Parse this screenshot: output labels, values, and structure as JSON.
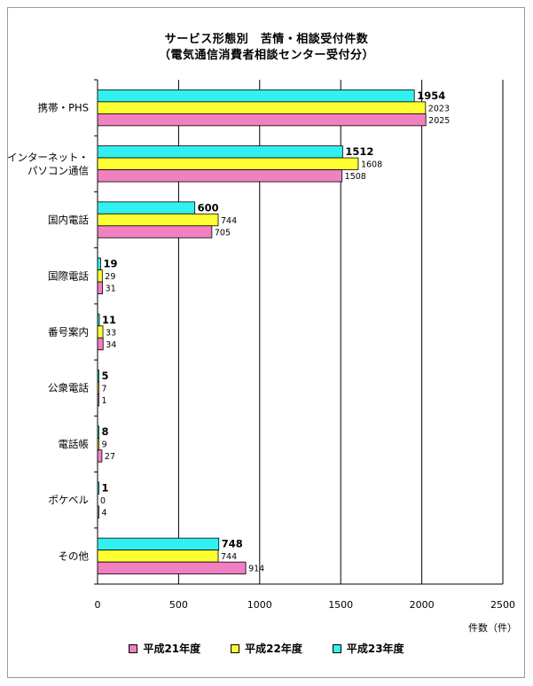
{
  "chart_data": {
    "type": "bar",
    "orientation": "horizontal",
    "title": "サービス形態別　苦情・相談受付件数",
    "subtitle": "（電気通信消費者相談センター受付分）",
    "categories": [
      "携帯・PHS",
      "インターネット・|パソコン通信",
      "国内電話",
      "国際電話",
      "番号案内",
      "公衆電話",
      "電話帳",
      "ポケベル",
      "その他"
    ],
    "series": [
      {
        "name": "平成23年度",
        "color": "#33f0f0",
        "values": [
          1954,
          1512,
          600,
          19,
          11,
          5,
          8,
          1,
          748
        ]
      },
      {
        "name": "平成22年度",
        "color": "#ffff33",
        "values": [
          2023,
          1608,
          744,
          29,
          33,
          7,
          9,
          0,
          744
        ]
      },
      {
        "name": "平成21年度",
        "color": "#f080c0",
        "values": [
          2025,
          1508,
          705,
          31,
          34,
          1,
          27,
          4,
          914
        ]
      }
    ],
    "xlim": [
      0,
      2500
    ],
    "xticks": [
      0,
      500,
      1000,
      1500,
      2000,
      2500
    ],
    "xlabel": "件数（件）",
    "legend_order": [
      "平成21年度",
      "平成22年度",
      "平成23年度"
    ],
    "legend_position": "bottom",
    "grid": true
  }
}
